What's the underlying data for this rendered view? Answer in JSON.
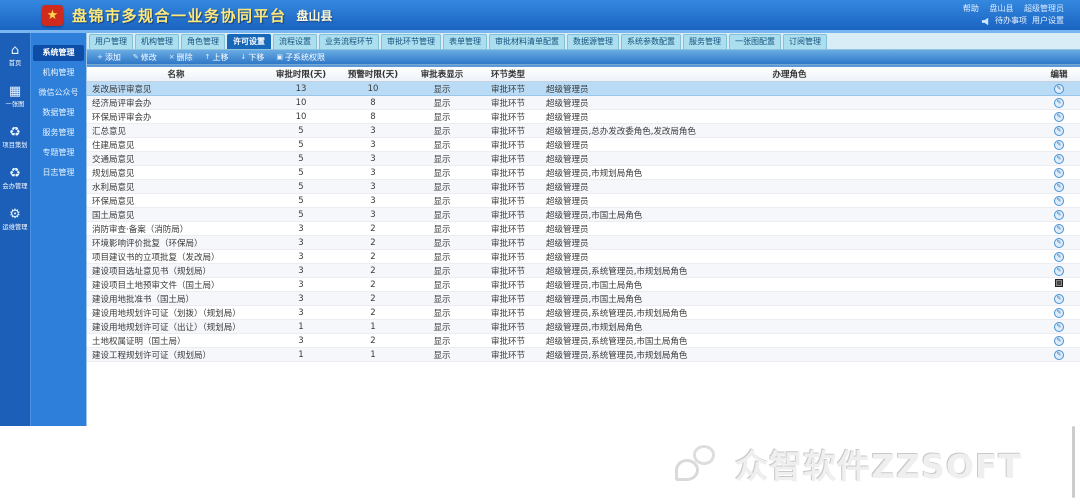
{
  "header": {
    "title": "盘锦市多规合一业务协同平台",
    "region": "盘山县",
    "help_label": "帮助",
    "user_region": "盘山县",
    "user_role": "超级管理员",
    "todo_label": "待办事项",
    "settings_label": "用户设置"
  },
  "nav_rail": {
    "items": [
      {
        "label": "首页",
        "icon": "home-icon",
        "glyph": "⌂"
      },
      {
        "label": "一张图",
        "icon": "one-map-icon",
        "glyph": "▦"
      },
      {
        "label": "项目策划",
        "icon": "project-plan-icon",
        "glyph": "♻"
      },
      {
        "label": "会办管理",
        "icon": "joint-handle-icon",
        "glyph": "♻"
      },
      {
        "label": "运维管理",
        "icon": "ops-gear-icon",
        "glyph": "⚙"
      }
    ]
  },
  "submenu": {
    "items": [
      {
        "label": "系统管理",
        "active": true
      },
      {
        "label": "机构管理",
        "active": false
      },
      {
        "label": "微信公众号",
        "active": false
      },
      {
        "label": "数据管理",
        "active": false
      },
      {
        "label": "服务管理",
        "active": false
      },
      {
        "label": "专题管理",
        "active": false
      },
      {
        "label": "日志管理",
        "active": false
      }
    ]
  },
  "tabs": {
    "active_index": 3,
    "items": [
      "用户管理",
      "机构管理",
      "角色管理",
      "许可设置",
      "流程设置",
      "业务流程环节",
      "审批环节管理",
      "表单管理",
      "审批材料清单配置",
      "数据源管理",
      "系统参数配置",
      "服务管理",
      "一张图配置",
      "订阅管理"
    ]
  },
  "toolbar": {
    "items": [
      {
        "label": "添加",
        "glyph": "+"
      },
      {
        "label": "修改",
        "glyph": "✎"
      },
      {
        "label": "删除",
        "glyph": "×"
      },
      {
        "label": "上移",
        "glyph": "↑"
      },
      {
        "label": "下移",
        "glyph": "↓"
      },
      {
        "label": "子系统权限",
        "glyph": "▣"
      }
    ]
  },
  "table": {
    "columns": [
      "名称",
      "审批时限(天)",
      "预警时限(天)",
      "审批表显示",
      "环节类型",
      "办理角色",
      "编辑"
    ],
    "rows": [
      {
        "name": "发改局评审意见",
        "approve_days": "13",
        "warn_days": "10",
        "display": "显示",
        "stage": "审批环节",
        "roles": "超级管理员",
        "selected": true,
        "edit": "edit"
      },
      {
        "name": "经济局评审会办",
        "approve_days": "10",
        "warn_days": "8",
        "display": "显示",
        "stage": "审批环节",
        "roles": "超级管理员",
        "selected": false,
        "edit": "edit"
      },
      {
        "name": "环保局评审会办",
        "approve_days": "10",
        "warn_days": "8",
        "display": "显示",
        "stage": "审批环节",
        "roles": "超级管理员",
        "selected": false,
        "edit": "edit"
      },
      {
        "name": "汇总意见",
        "approve_days": "5",
        "warn_days": "3",
        "display": "显示",
        "stage": "审批环节",
        "roles": "超级管理员,总办发改委角色,发改局角色",
        "selected": false,
        "edit": "edit"
      },
      {
        "name": "住建局意见",
        "approve_days": "5",
        "warn_days": "3",
        "display": "显示",
        "stage": "审批环节",
        "roles": "超级管理员",
        "selected": false,
        "edit": "edit"
      },
      {
        "name": "交通局意见",
        "approve_days": "5",
        "warn_days": "3",
        "display": "显示",
        "stage": "审批环节",
        "roles": "超级管理员",
        "selected": false,
        "edit": "edit"
      },
      {
        "name": "规划局意见",
        "approve_days": "5",
        "warn_days": "3",
        "display": "显示",
        "stage": "审批环节",
        "roles": "超级管理员,市规划局角色",
        "selected": false,
        "edit": "edit"
      },
      {
        "name": "水利局意见",
        "approve_days": "5",
        "warn_days": "3",
        "display": "显示",
        "stage": "审批环节",
        "roles": "超级管理员",
        "selected": false,
        "edit": "edit"
      },
      {
        "name": "环保局意见",
        "approve_days": "5",
        "warn_days": "3",
        "display": "显示",
        "stage": "审批环节",
        "roles": "超级管理员",
        "selected": false,
        "edit": "edit"
      },
      {
        "name": "国土局意见",
        "approve_days": "5",
        "warn_days": "3",
        "display": "显示",
        "stage": "审批环节",
        "roles": "超级管理员,市国土局角色",
        "selected": false,
        "edit": "edit"
      },
      {
        "name": "消防审查·备案（消防局）",
        "approve_days": "3",
        "warn_days": "2",
        "display": "显示",
        "stage": "审批环节",
        "roles": "超级管理员",
        "selected": false,
        "edit": "edit"
      },
      {
        "name": "环境影响评价批复（环保局）",
        "approve_days": "3",
        "warn_days": "2",
        "display": "显示",
        "stage": "审批环节",
        "roles": "超级管理员",
        "selected": false,
        "edit": "edit"
      },
      {
        "name": "项目建议书的立项批复（发改局）",
        "approve_days": "3",
        "warn_days": "2",
        "display": "显示",
        "stage": "审批环节",
        "roles": "超级管理员",
        "selected": false,
        "edit": "edit"
      },
      {
        "name": "建设项目选址意见书（规划局）",
        "approve_days": "3",
        "warn_days": "2",
        "display": "显示",
        "stage": "审批环节",
        "roles": "超级管理员,系统管理员,市规划局角色",
        "selected": false,
        "edit": "edit"
      },
      {
        "name": "建设项目土地预审文件（国土局）",
        "approve_days": "3",
        "warn_days": "2",
        "display": "显示",
        "stage": "审批环节",
        "roles": "超级管理员,市国土局角色",
        "selected": false,
        "edit": "grid"
      },
      {
        "name": "建设用地批准书（国土局）",
        "approve_days": "3",
        "warn_days": "2",
        "display": "显示",
        "stage": "审批环节",
        "roles": "超级管理员,市国土局角色",
        "selected": false,
        "edit": "edit"
      },
      {
        "name": "建设用地规划许可证（划拨）（规划局）",
        "approve_days": "3",
        "warn_days": "2",
        "display": "显示",
        "stage": "审批环节",
        "roles": "超级管理员,系统管理员,市规划局角色",
        "selected": false,
        "edit": "edit"
      },
      {
        "name": "建设用地规划许可证（出让）（规划局）",
        "approve_days": "1",
        "warn_days": "1",
        "display": "显示",
        "stage": "审批环节",
        "roles": "超级管理员,市规划局角色",
        "selected": false,
        "edit": "edit"
      },
      {
        "name": "土地权属证明（国土局）",
        "approve_days": "3",
        "warn_days": "2",
        "display": "显示",
        "stage": "审批环节",
        "roles": "超级管理员,系统管理员,市国土局角色",
        "selected": false,
        "edit": "edit"
      },
      {
        "name": "建设工程规划许可证（规划局）",
        "approve_days": "1",
        "warn_days": "1",
        "display": "显示",
        "stage": "审批环节",
        "roles": "超级管理员,系统管理员,市规划局角色",
        "selected": false,
        "edit": "edit"
      }
    ]
  },
  "watermark": {
    "text": "众智软件ZZSOFT"
  },
  "colors": {
    "accent": "#1768b8",
    "header_blue": "#2e84dc",
    "selected_row": "#b9dbf5",
    "emblem_red": "#cf2a1d"
  }
}
